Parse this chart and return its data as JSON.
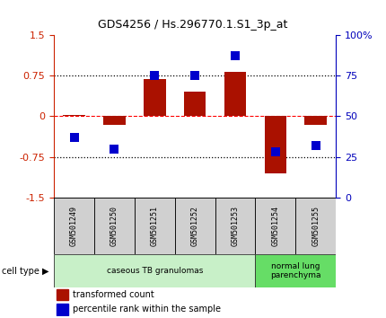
{
  "title": "GDS4256 / Hs.296770.1.S1_3p_at",
  "samples": [
    "GSM501249",
    "GSM501250",
    "GSM501251",
    "GSM501252",
    "GSM501253",
    "GSM501254",
    "GSM501255"
  ],
  "transformed_counts": [
    0.02,
    -0.15,
    0.68,
    0.45,
    0.82,
    -1.05,
    -0.15
  ],
  "percentile_ranks": [
    37,
    30,
    75,
    75,
    87,
    28,
    32
  ],
  "cell_type_groups": [
    {
      "label": "caseous TB granulomas",
      "indices": [
        0,
        1,
        2,
        3,
        4
      ],
      "color": "#c8f0c8"
    },
    {
      "label": "normal lung\nparenchyma",
      "indices": [
        5,
        6
      ],
      "color": "#66dd66"
    }
  ],
  "ylim_left": [
    -1.5,
    1.5
  ],
  "ylim_right": [
    0,
    100
  ],
  "yticks_left": [
    -1.5,
    -0.75,
    0,
    0.75,
    1.5
  ],
  "ytick_labels_left": [
    "-1.5",
    "-0.75",
    "0",
    "0.75",
    "1.5"
  ],
  "yticks_right": [
    0,
    25,
    50,
    75,
    100
  ],
  "ytick_labels_right": [
    "0",
    "25",
    "50",
    "75",
    "100%"
  ],
  "hline_dotted": [
    0.75,
    -0.75
  ],
  "hline_dashed": [
    0
  ],
  "bar_color": "#aa1100",
  "dot_color": "#0000cc",
  "axis_color_left": "#cc2200",
  "axis_color_right": "#0000bb",
  "legend_red_label": "transformed count",
  "legend_blue_label": "percentile rank within the sample",
  "cell_type_label": "cell type",
  "bar_width": 0.55,
  "dot_size": 45,
  "sample_cell_color": "#d0d0d0",
  "plot_bg": "#ffffff"
}
